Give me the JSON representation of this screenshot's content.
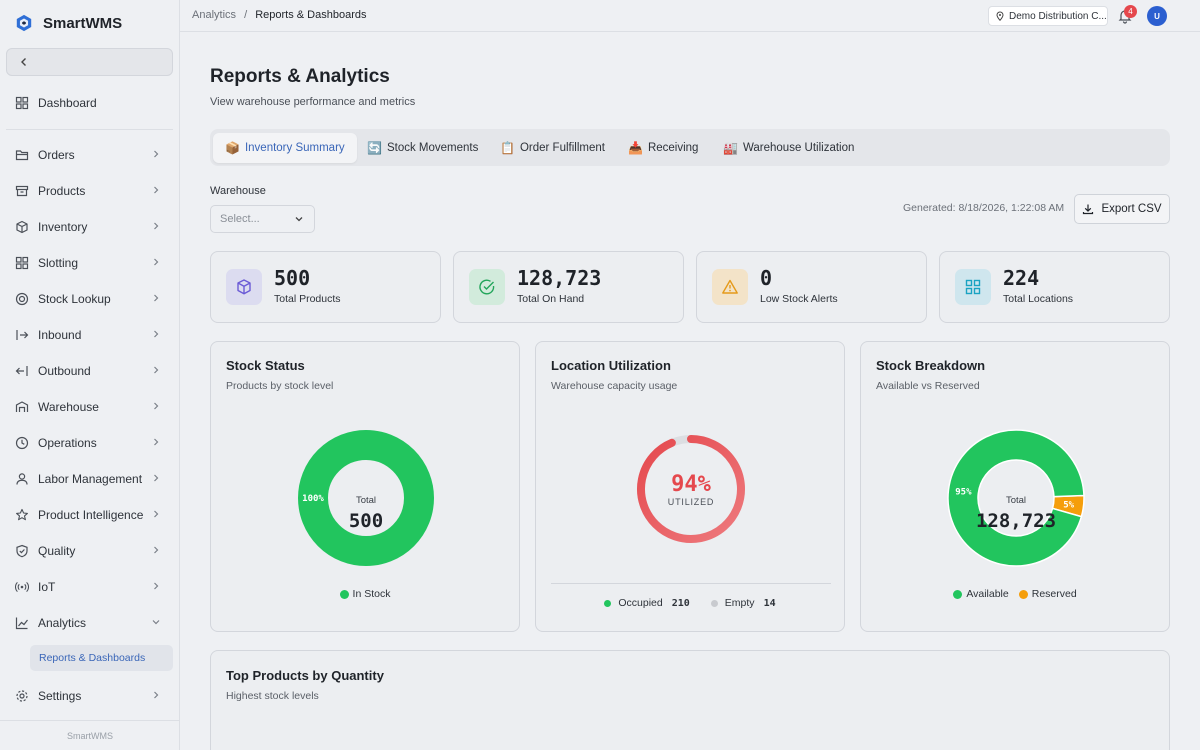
{
  "brand": {
    "name": "SmartWMS",
    "footer": "SmartWMS"
  },
  "sidebar": {
    "items": [
      {
        "label": "Dashboard",
        "icon": "grid-icon"
      },
      {
        "label": "Orders",
        "icon": "folder-icon"
      },
      {
        "label": "Products",
        "icon": "archive-icon"
      },
      {
        "label": "Inventory",
        "icon": "cube-icon"
      },
      {
        "label": "Slotting",
        "icon": "grid-icon"
      },
      {
        "label": "Stock Lookup",
        "icon": "target-icon"
      },
      {
        "label": "Inbound",
        "icon": "login-icon"
      },
      {
        "label": "Outbound",
        "icon": "logout-icon"
      },
      {
        "label": "Warehouse",
        "icon": "warehouse-icon"
      },
      {
        "label": "Operations",
        "icon": "clock-icon"
      },
      {
        "label": "Labor Management",
        "icon": "user-icon"
      },
      {
        "label": "Product Intelligence",
        "icon": "star-icon"
      },
      {
        "label": "Quality",
        "icon": "shield-icon"
      },
      {
        "label": "IoT",
        "icon": "broadcast-icon"
      },
      {
        "label": "Analytics",
        "icon": "chart-icon"
      },
      {
        "label": "Settings",
        "icon": "gear-icon"
      }
    ],
    "sub_item": "Reports & Dashboards"
  },
  "topbar": {
    "crumb_parent": "Analytics",
    "crumb_sep": "/",
    "crumb_current": "Reports & Dashboards",
    "warehouse": "Demo Distribution C...",
    "notifications": "4",
    "avatar": "U"
  },
  "page": {
    "title": "Reports & Analytics",
    "subtitle": "View warehouse performance and metrics"
  },
  "tabs": [
    {
      "emoji": "📦",
      "label": "Inventory Summary",
      "active": true
    },
    {
      "emoji": "🔄",
      "label": "Stock Movements",
      "active": false
    },
    {
      "emoji": "📋",
      "label": "Order Fulfillment",
      "active": false
    },
    {
      "emoji": "📥",
      "label": "Receiving",
      "active": false
    },
    {
      "emoji": "🏭",
      "label": "Warehouse Utilization",
      "active": false
    }
  ],
  "filters": {
    "warehouse_label": "Warehouse",
    "warehouse_placeholder": "Select...",
    "generated": "Generated: 8/18/2026, 1:22:08 AM",
    "export_label": "Export CSV"
  },
  "stats": [
    {
      "value": "500",
      "label": "Total Products",
      "icon": "cube-icon",
      "color": "#6b5bd6",
      "bg": "#dcdcf0"
    },
    {
      "value": "128,723",
      "label": "Total On Hand",
      "icon": "check-circle-icon",
      "color": "#22a55a",
      "bg": "#d2ebdc"
    },
    {
      "value": "0",
      "label": "Low Stock Alerts",
      "icon": "warning-icon",
      "color": "#e59a1a",
      "bg": "#f3e3c8"
    },
    {
      "value": "224",
      "label": "Total Locations",
      "icon": "grid-icon",
      "color": "#1aa3c2",
      "bg": "#cfe6ee"
    }
  ],
  "cards": {
    "stock_status": {
      "title": "Stock Status",
      "subtitle": "Products by stock level",
      "center_label": "Total",
      "center_value": "500",
      "pct_label": "100%"
    },
    "location_utilization": {
      "title": "Location Utilization",
      "subtitle": "Warehouse capacity usage",
      "pct": "94%",
      "utilized_label": "UTILIZED",
      "occupied_label": "Occupied",
      "occupied_value": "210",
      "empty_label": "Empty",
      "empty_value": "14"
    },
    "stock_breakdown": {
      "title": "Stock Breakdown",
      "subtitle": "Available vs Reserved",
      "center_label": "Total",
      "center_value": "128,723",
      "available_pct": "95%",
      "reserved_pct": "5%"
    },
    "top_products": {
      "title": "Top Products by Quantity",
      "subtitle": "Highest stock levels"
    }
  },
  "chart_data": [
    {
      "type": "pie",
      "title": "Stock Status",
      "categories": [
        "In Stock"
      ],
      "values": [
        100
      ],
      "colors": [
        "#22c55e"
      ]
    },
    {
      "type": "pie",
      "title": "Location Utilization",
      "categories": [
        "Occupied",
        "Empty"
      ],
      "values": [
        210,
        14
      ],
      "colors": [
        "#e5484d",
        "#d4d6da"
      ]
    },
    {
      "type": "pie",
      "title": "Stock Breakdown",
      "categories": [
        "Available",
        "Reserved"
      ],
      "values": [
        95,
        5
      ],
      "colors": [
        "#22c55e",
        "#f59e0b"
      ]
    }
  ]
}
